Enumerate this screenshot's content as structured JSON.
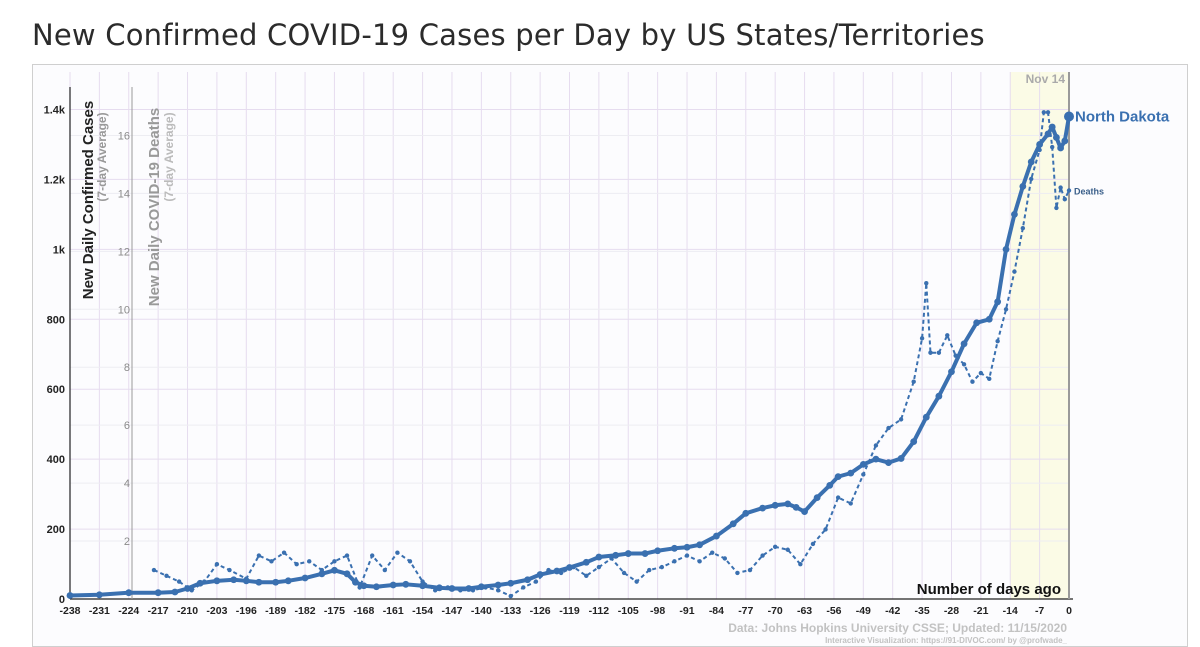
{
  "title": "New Confirmed COVID-19 Cases per Day by US States/Territories",
  "colors": {
    "series": "#3a70b0",
    "grid": "#e6dcef",
    "highlight": "#fbfbe6",
    "footer": "#c2c2c2",
    "muted": "#999999"
  },
  "chart_data": {
    "type": "line",
    "state": "North Dakota",
    "highlight_label": "Nov 14",
    "deaths_label": "Deaths",
    "y_axis": {
      "label": "New Daily Confirmed Cases",
      "sublabel": "(7-day Average)",
      "ylim": [
        0,
        1450
      ],
      "ticks": [
        0,
        200,
        400,
        600,
        800,
        1000,
        1200,
        1400
      ],
      "tick_labels": [
        "0",
        "200",
        "400",
        "600",
        "800",
        "1k",
        "1.2k",
        "1.4k"
      ]
    },
    "y2_axis": {
      "label": "New Daily COVID-19 Deaths",
      "sublabel": "(7-day Average)",
      "ylim": [
        0,
        17.5
      ],
      "ticks": [
        2,
        4,
        6,
        8,
        10,
        12,
        14,
        16
      ],
      "tick_labels": [
        "2",
        "4",
        "6",
        "8",
        "10",
        "12",
        "14",
        "16"
      ]
    },
    "x_axis": {
      "label": "Number of days ago",
      "xlim": [
        -238,
        0
      ],
      "ticks": [
        -238,
        -231,
        -224,
        -217,
        -210,
        -203,
        -196,
        -189,
        -182,
        -175,
        -168,
        -161,
        -154,
        -147,
        -140,
        -133,
        -126,
        -119,
        -112,
        -105,
        -98,
        -91,
        -84,
        -77,
        -70,
        -63,
        -56,
        -49,
        -42,
        -35,
        -28,
        -21,
        -14,
        -7,
        0
      ]
    },
    "series": [
      {
        "name": "Cases",
        "points": [
          [
            -238,
            10
          ],
          [
            -231,
            12
          ],
          [
            -224,
            18
          ],
          [
            -217,
            18
          ],
          [
            -213,
            20
          ],
          [
            -210,
            30
          ],
          [
            -207,
            45
          ],
          [
            -203,
            52
          ],
          [
            -199,
            55
          ],
          [
            -196,
            52
          ],
          [
            -193,
            48
          ],
          [
            -189,
            48
          ],
          [
            -186,
            52
          ],
          [
            -182,
            60
          ],
          [
            -178,
            72
          ],
          [
            -175,
            82
          ],
          [
            -172,
            72
          ],
          [
            -170,
            48
          ],
          [
            -168,
            38
          ],
          [
            -165,
            35
          ],
          [
            -161,
            40
          ],
          [
            -158,
            42
          ],
          [
            -154,
            38
          ],
          [
            -150,
            32
          ],
          [
            -147,
            30
          ],
          [
            -143,
            30
          ],
          [
            -140,
            35
          ],
          [
            -136,
            40
          ],
          [
            -133,
            45
          ],
          [
            -129,
            55
          ],
          [
            -126,
            70
          ],
          [
            -122,
            80
          ],
          [
            -119,
            90
          ],
          [
            -115,
            105
          ],
          [
            -112,
            120
          ],
          [
            -108,
            125
          ],
          [
            -105,
            130
          ],
          [
            -101,
            130
          ],
          [
            -98,
            138
          ],
          [
            -94,
            145
          ],
          [
            -91,
            148
          ],
          [
            -88,
            155
          ],
          [
            -84,
            180
          ],
          [
            -80,
            215
          ],
          [
            -77,
            245
          ],
          [
            -73,
            260
          ],
          [
            -70,
            268
          ],
          [
            -67,
            272
          ],
          [
            -65,
            262
          ],
          [
            -63,
            250
          ],
          [
            -60,
            290
          ],
          [
            -57,
            325
          ],
          [
            -55,
            350
          ],
          [
            -52,
            360
          ],
          [
            -49,
            385
          ],
          [
            -46,
            400
          ],
          [
            -43,
            390
          ],
          [
            -40,
            402
          ],
          [
            -37,
            450
          ],
          [
            -34,
            520
          ],
          [
            -31,
            580
          ],
          [
            -28,
            650
          ],
          [
            -25,
            730
          ],
          [
            -22,
            790
          ],
          [
            -19,
            800
          ],
          [
            -17,
            850
          ],
          [
            -15,
            1000
          ],
          [
            -13,
            1100
          ],
          [
            -11,
            1180
          ],
          [
            -9,
            1250
          ],
          [
            -7,
            1300
          ],
          [
            -5,
            1330
          ],
          [
            -4,
            1350
          ],
          [
            -3,
            1320
          ],
          [
            -2,
            1290
          ],
          [
            -1,
            1310
          ],
          [
            0,
            1380
          ]
        ]
      },
      {
        "name": "Deaths",
        "points": [
          [
            -218,
            1.0
          ],
          [
            -215,
            0.8
          ],
          [
            -212,
            0.6
          ],
          [
            -209,
            0.3
          ],
          [
            -206,
            0.6
          ],
          [
            -203,
            1.2
          ],
          [
            -200,
            1.0
          ],
          [
            -196,
            0.7
          ],
          [
            -193,
            1.5
          ],
          [
            -190,
            1.3
          ],
          [
            -187,
            1.6
          ],
          [
            -184,
            1.2
          ],
          [
            -181,
            1.3
          ],
          [
            -178,
            1.0
          ],
          [
            -175,
            1.3
          ],
          [
            -172,
            1.5
          ],
          [
            -169,
            0.4
          ],
          [
            -166,
            1.5
          ],
          [
            -163,
            1.0
          ],
          [
            -160,
            1.6
          ],
          [
            -157,
            1.3
          ],
          [
            -154,
            0.6
          ],
          [
            -151,
            0.3
          ],
          [
            -148,
            0.4
          ],
          [
            -145,
            0.3
          ],
          [
            -142,
            0.3
          ],
          [
            -139,
            0.4
          ],
          [
            -136,
            0.3
          ],
          [
            -133,
            0.1
          ],
          [
            -130,
            0.4
          ],
          [
            -127,
            0.6
          ],
          [
            -124,
            1.0
          ],
          [
            -121,
            0.9
          ],
          [
            -118,
            1.1
          ],
          [
            -115,
            0.8
          ],
          [
            -112,
            1.1
          ],
          [
            -109,
            1.4
          ],
          [
            -106,
            0.9
          ],
          [
            -103,
            0.6
          ],
          [
            -100,
            1.0
          ],
          [
            -97,
            1.1
          ],
          [
            -94,
            1.3
          ],
          [
            -91,
            1.5
          ],
          [
            -88,
            1.3
          ],
          [
            -85,
            1.6
          ],
          [
            -82,
            1.4
          ],
          [
            -79,
            0.9
          ],
          [
            -76,
            1.0
          ],
          [
            -73,
            1.5
          ],
          [
            -70,
            1.8
          ],
          [
            -67,
            1.7
          ],
          [
            -64,
            1.2
          ],
          [
            -61,
            1.9
          ],
          [
            -58,
            2.4
          ],
          [
            -55,
            3.5
          ],
          [
            -52,
            3.3
          ],
          [
            -49,
            4.3
          ],
          [
            -46,
            5.3
          ],
          [
            -43,
            5.9
          ],
          [
            -40,
            6.2
          ],
          [
            -37,
            7.5
          ],
          [
            -35,
            9.0
          ],
          [
            -34,
            10.9
          ],
          [
            -33,
            8.5
          ],
          [
            -31,
            8.5
          ],
          [
            -29,
            9.1
          ],
          [
            -27,
            8.4
          ],
          [
            -25,
            8.1
          ],
          [
            -23,
            7.5
          ],
          [
            -21,
            7.8
          ],
          [
            -19,
            7.6
          ],
          [
            -17,
            8.9
          ],
          [
            -15,
            10.0
          ],
          [
            -13,
            11.3
          ],
          [
            -11,
            12.8
          ],
          [
            -9,
            14.5
          ],
          [
            -7,
            15.5
          ],
          [
            -6,
            16.8
          ],
          [
            -5,
            16.8
          ],
          [
            -4,
            15.6
          ],
          [
            -3,
            13.5
          ],
          [
            -2,
            14.2
          ],
          [
            -1,
            13.8
          ],
          [
            0,
            14.1
          ]
        ]
      }
    ]
  },
  "footer": {
    "source": "Data: Johns Hopkins University CSSE; Updated: 11/15/2020",
    "credit": "Interactive Visualization: https://91-DIVOC.com/ by @profwade_"
  }
}
